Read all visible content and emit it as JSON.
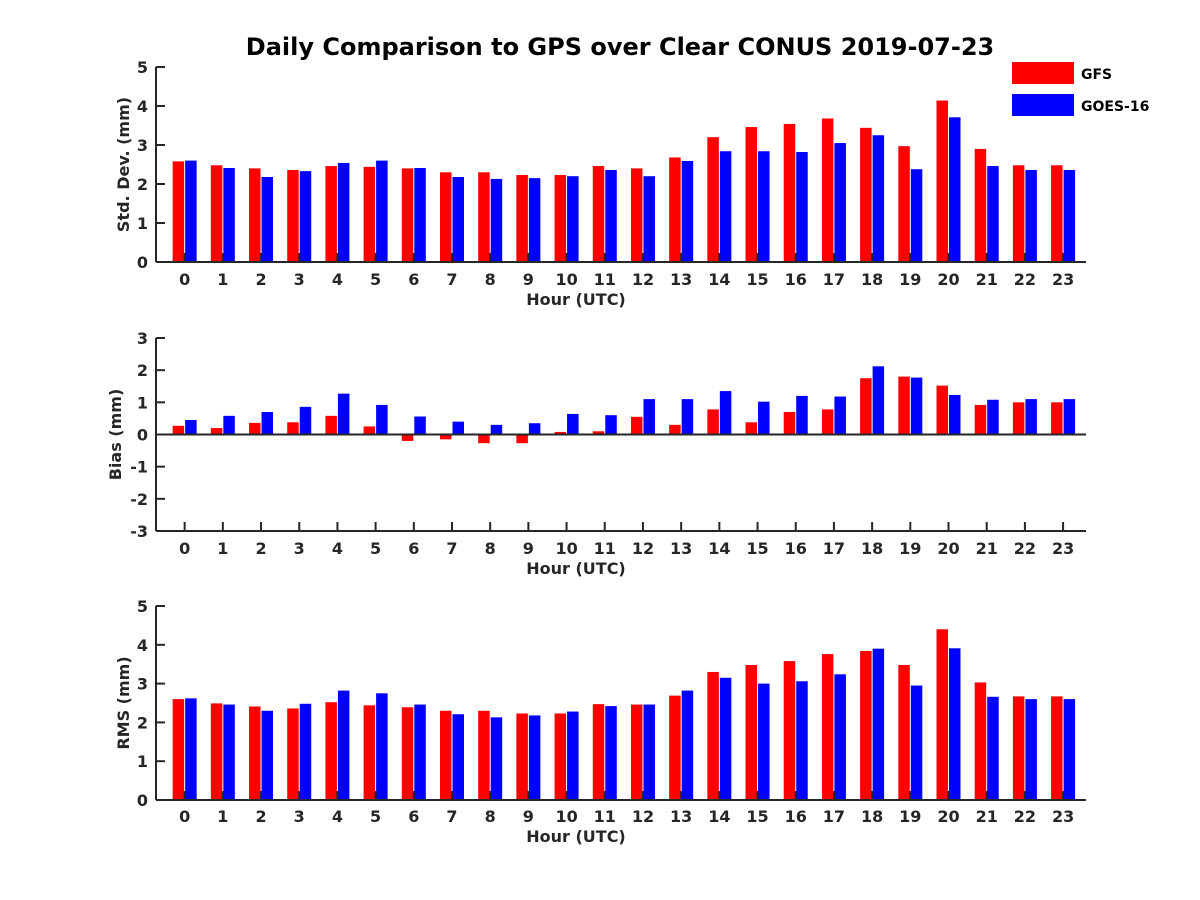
{
  "chart_data": {
    "title": "Daily Comparison to GPS over Clear CONUS 2019-07-23",
    "legend": {
      "placement": "top-right",
      "entries": [
        {
          "name": "GFS",
          "color": "#ff0000"
        },
        {
          "name": "GOES-16",
          "color": "#0000ff"
        }
      ]
    },
    "panels": [
      {
        "type": "bar",
        "ylabel": "Std. Dev. (mm)",
        "xlabel": "Hour (UTC)",
        "ylim": [
          0,
          5
        ],
        "yticks": [
          "0",
          "1",
          "2",
          "3",
          "4",
          "5"
        ],
        "categories": [
          "0",
          "1",
          "2",
          "3",
          "4",
          "5",
          "6",
          "7",
          "8",
          "9",
          "10",
          "11",
          "12",
          "13",
          "14",
          "15",
          "16",
          "17",
          "18",
          "19",
          "20",
          "21",
          "22",
          "23"
        ],
        "series": [
          {
            "name": "GFS",
            "values": [
              2.58,
              2.48,
              2.4,
              2.36,
              2.46,
              2.44,
              2.4,
              2.3,
              2.3,
              2.23,
              2.23,
              2.46,
              2.4,
              2.68,
              3.2,
              3.46,
              3.54,
              3.68,
              3.44,
              2.97,
              4.14,
              2.9,
              2.48,
              2.48
            ]
          },
          {
            "name": "GOES-16",
            "values": [
              2.6,
              2.41,
              2.18,
              2.33,
              2.54,
              2.6,
              2.41,
              2.18,
              2.13,
              2.15,
              2.2,
              2.36,
              2.2,
              2.59,
              2.84,
              2.84,
              2.82,
              3.05,
              3.25,
              2.38,
              3.71,
              2.46,
              2.36,
              2.36
            ]
          }
        ]
      },
      {
        "type": "bar",
        "ylabel": "Bias (mm)",
        "xlabel": "Hour (UTC)",
        "ylim": [
          -3,
          3
        ],
        "yticks": [
          "-3",
          "-2",
          "-1",
          "0",
          "1",
          "2",
          "3"
        ],
        "categories": [
          "0",
          "1",
          "2",
          "3",
          "4",
          "5",
          "6",
          "7",
          "8",
          "9",
          "10",
          "11",
          "12",
          "13",
          "14",
          "15",
          "16",
          "17",
          "18",
          "19",
          "20",
          "21",
          "22",
          "23"
        ],
        "series": [
          {
            "name": "GFS",
            "values": [
              0.27,
              0.2,
              0.36,
              0.38,
              0.58,
              0.25,
              -0.2,
              -0.15,
              -0.27,
              -0.27,
              0.08,
              0.1,
              0.55,
              0.3,
              0.78,
              0.38,
              0.7,
              0.78,
              1.75,
              1.8,
              1.52,
              0.92,
              1.0,
              1.0
            ]
          },
          {
            "name": "GOES-16",
            "values": [
              0.45,
              0.58,
              0.7,
              0.86,
              1.27,
              0.92,
              0.56,
              0.4,
              0.3,
              0.35,
              0.64,
              0.6,
              1.1,
              1.1,
              1.35,
              1.02,
              1.2,
              1.18,
              2.12,
              1.77,
              1.23,
              1.08,
              1.1,
              1.1
            ]
          }
        ]
      },
      {
        "type": "bar",
        "ylabel": "RMS (mm)",
        "xlabel": "Hour (UTC)",
        "ylim": [
          0,
          5
        ],
        "yticks": [
          "0",
          "1",
          "2",
          "3",
          "4",
          "5"
        ],
        "categories": [
          "0",
          "1",
          "2",
          "3",
          "4",
          "5",
          "6",
          "7",
          "8",
          "9",
          "10",
          "11",
          "12",
          "13",
          "14",
          "15",
          "16",
          "17",
          "18",
          "19",
          "20",
          "21",
          "22",
          "23"
        ],
        "series": [
          {
            "name": "GFS",
            "values": [
              2.6,
              2.49,
              2.41,
              2.36,
              2.52,
              2.44,
              2.39,
              2.3,
              2.3,
              2.23,
              2.23,
              2.47,
              2.46,
              2.69,
              3.3,
              3.48,
              3.58,
              3.76,
              3.84,
              3.48,
              4.4,
              3.03,
              2.67,
              2.67
            ]
          },
          {
            "name": "GOES-16",
            "values": [
              2.62,
              2.46,
              2.3,
              2.48,
              2.82,
              2.75,
              2.46,
              2.21,
              2.13,
              2.18,
              2.28,
              2.42,
              2.46,
              2.82,
              3.15,
              3.0,
              3.06,
              3.24,
              3.9,
              2.95,
              3.91,
              2.66,
              2.6,
              2.6
            ]
          }
        ]
      }
    ]
  }
}
